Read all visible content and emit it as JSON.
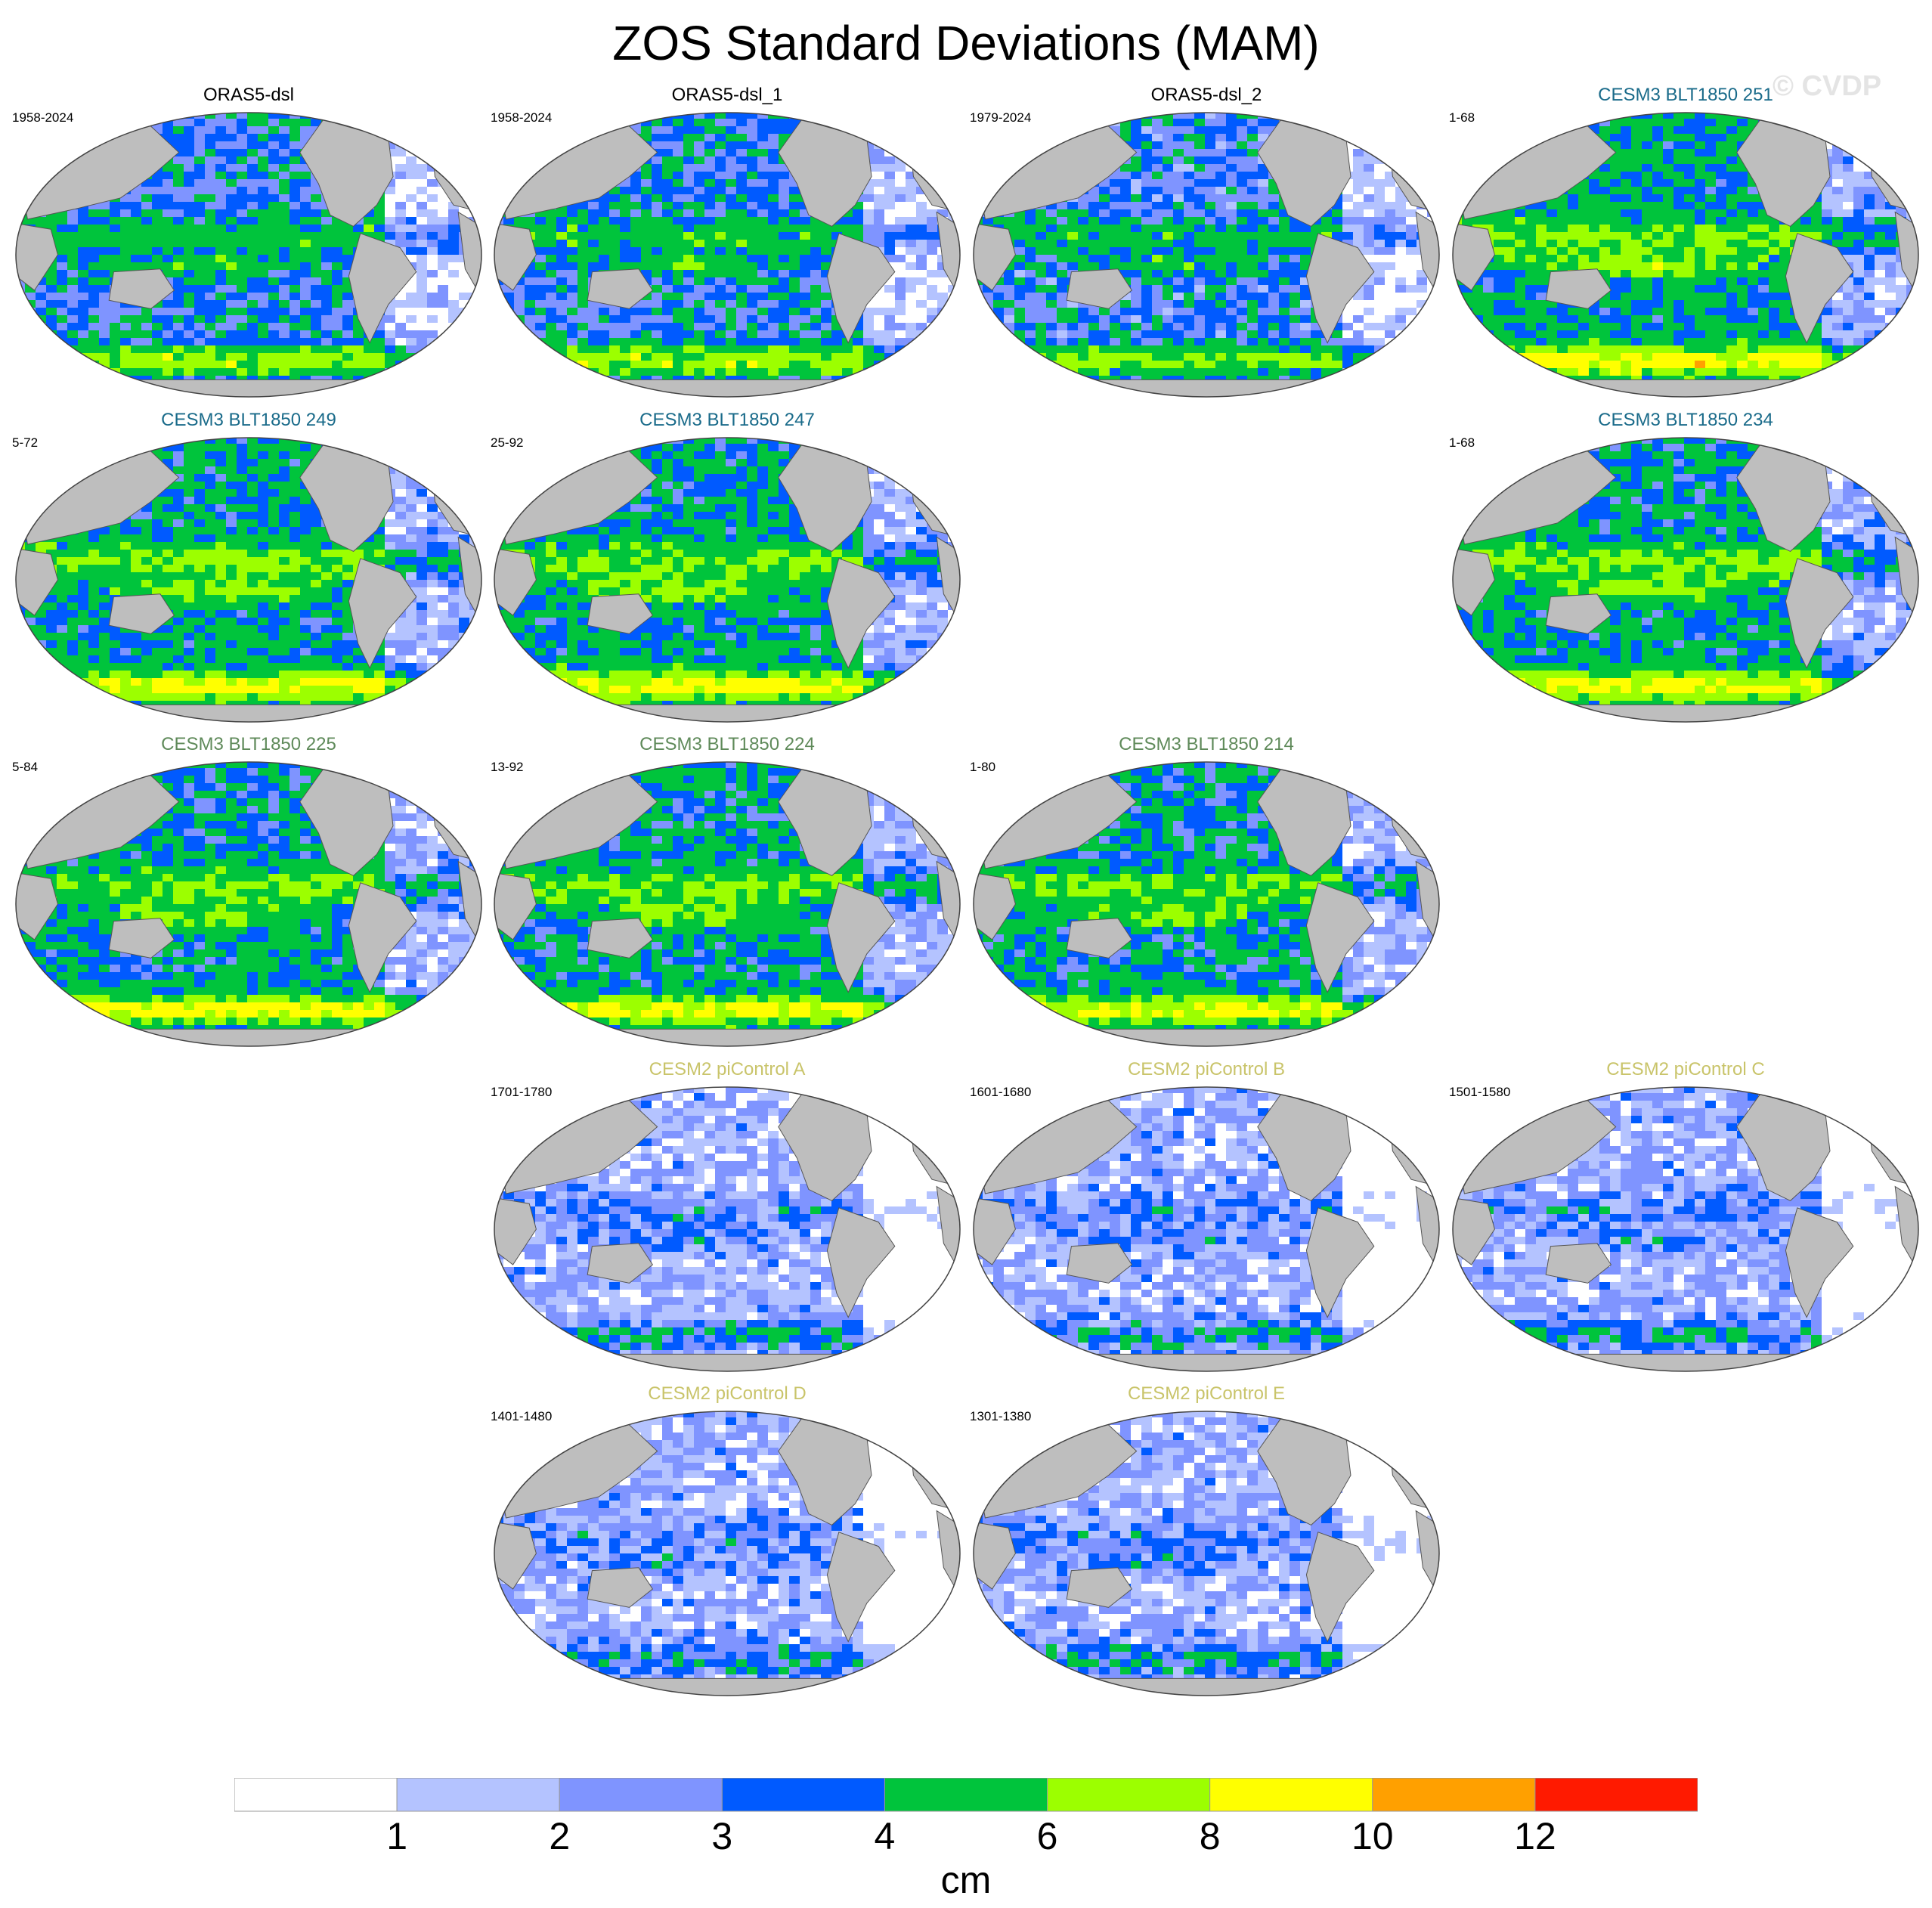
{
  "title": "ZOS Standard Deviations (MAM)",
  "watermark": "© CVDP",
  "panels": [
    {
      "title": "ORAS5-dsl",
      "years": "1958-2024",
      "color": "#000000",
      "intensity": 0.55,
      "col": 0,
      "row": 0
    },
    {
      "title": "ORAS5-dsl_1",
      "years": "1958-2024",
      "color": "#000000",
      "intensity": 0.55,
      "col": 1,
      "row": 0
    },
    {
      "title": "ORAS5-dsl_2",
      "years": "1979-2024",
      "color": "#000000",
      "intensity": 0.52,
      "col": 2,
      "row": 0
    },
    {
      "title": "CESM3 BLT1850 251",
      "years": "1-68",
      "color": "#1a6b8a",
      "intensity": 0.7,
      "col": 3,
      "row": 0
    },
    {
      "title": "CESM3 BLT1850 249",
      "years": "5-72",
      "color": "#1a6b8a",
      "intensity": 0.68,
      "col": 0,
      "row": 1
    },
    {
      "title": "CESM3 BLT1850 247",
      "years": "25-92",
      "color": "#1a6b8a",
      "intensity": 0.68,
      "col": 1,
      "row": 1
    },
    {
      "title": "CESM3 BLT1850 234",
      "years": "1-68",
      "color": "#1a6b8a",
      "intensity": 0.68,
      "col": 3,
      "row": 1
    },
    {
      "title": "CESM3 BLT1850 225",
      "years": "5-84",
      "color": "#5f8a5a",
      "intensity": 0.66,
      "col": 0,
      "row": 2
    },
    {
      "title": "CESM3 BLT1850 224",
      "years": "13-92",
      "color": "#5f8a5a",
      "intensity": 0.66,
      "col": 1,
      "row": 2
    },
    {
      "title": "CESM3 BLT1850 214",
      "years": "1-80",
      "color": "#5f8a5a",
      "intensity": 0.64,
      "col": 2,
      "row": 2
    },
    {
      "title": "CESM2 piControl A",
      "years": "1701-1780",
      "color": "#c9c46a",
      "intensity": 0.3,
      "col": 1,
      "row": 3
    },
    {
      "title": "CESM2 piControl B",
      "years": "1601-1680",
      "color": "#c9c46a",
      "intensity": 0.3,
      "col": 2,
      "row": 3
    },
    {
      "title": "CESM2 piControl C",
      "years": "1501-1580",
      "color": "#c9c46a",
      "intensity": 0.3,
      "col": 3,
      "row": 3
    },
    {
      "title": "CESM2 piControl D",
      "years": "1401-1480",
      "color": "#c9c46a",
      "intensity": 0.3,
      "col": 1,
      "row": 4
    },
    {
      "title": "CESM2 piControl E",
      "years": "1301-1380",
      "color": "#c9c46a",
      "intensity": 0.3,
      "col": 2,
      "row": 4
    }
  ],
  "colorbar": {
    "colors": [
      "#ffffff",
      "#b4c3ff",
      "#7f94ff",
      "#005aff",
      "#00c43c",
      "#9cff00",
      "#ffff00",
      "#ffa000",
      "#ff1a00"
    ],
    "ticks": [
      "1",
      "2",
      "3",
      "4",
      "6",
      "8",
      "10",
      "12"
    ],
    "unit": "cm"
  },
  "legend": {
    "levels": [
      0,
      1,
      2,
      3,
      4,
      6,
      8,
      10,
      12
    ],
    "unit": "cm",
    "land_color": "#bebebe"
  }
}
